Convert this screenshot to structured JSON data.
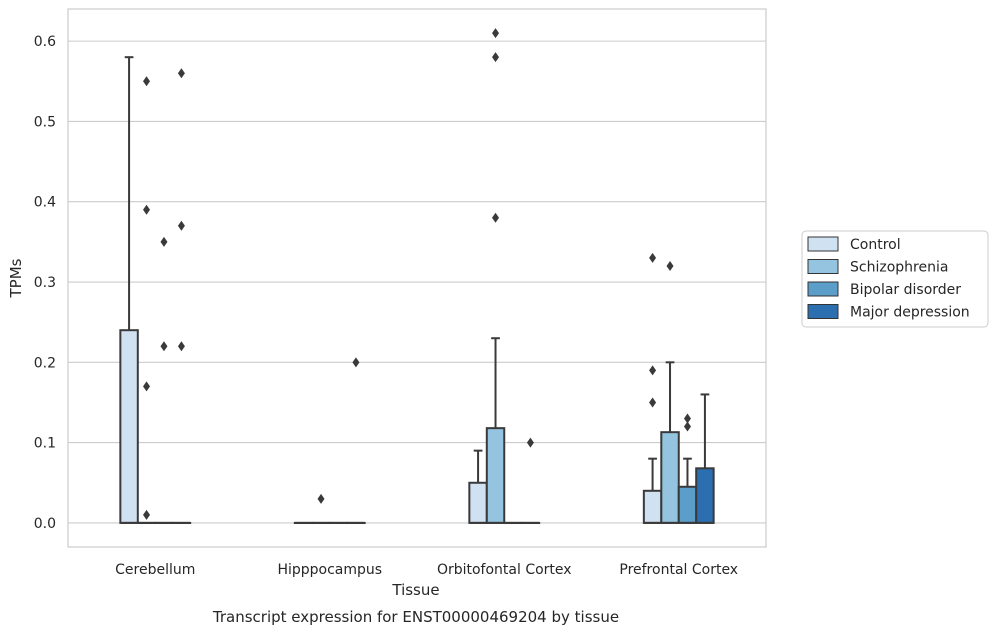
{
  "caption": "Transcript expression for ENST00000469204 by tissue",
  "chart_data": {
    "type": "box",
    "xlabel": "Tissue",
    "ylabel": "TPMs",
    "ylim": [
      -0.03,
      0.64
    ],
    "yticks": [
      "0.0",
      "0.1",
      "0.2",
      "0.3",
      "0.4",
      "0.5",
      "0.6"
    ],
    "grid": "horizontal",
    "legend_position": "right",
    "categories": [
      "Cerebellum",
      "Hipppocampus",
      "Orbitofontal Cortex",
      "Prefrontal Cortex"
    ],
    "series": [
      {
        "name": "Control",
        "color": "#d0e1f2",
        "boxes": [
          {
            "category": "Cerebellum",
            "q1": 0.0,
            "median": 0.0,
            "q3": 0.24,
            "whisker_low": 0.0,
            "whisker_high": 0.58,
            "outliers": []
          },
          {
            "category": "Hipppocampus",
            "q1": 0.0,
            "median": 0.0,
            "q3": 0.0,
            "whisker_low": 0.0,
            "whisker_high": 0.0,
            "outliers": []
          },
          {
            "category": "Orbitofontal Cortex",
            "q1": 0.0,
            "median": 0.0,
            "q3": 0.05,
            "whisker_low": 0.0,
            "whisker_high": 0.09,
            "outliers": []
          },
          {
            "category": "Prefrontal Cortex",
            "q1": 0.0,
            "median": 0.0,
            "q3": 0.04,
            "whisker_low": 0.0,
            "whisker_high": 0.08,
            "outliers": [
              0.15,
              0.19,
              0.33
            ]
          }
        ]
      },
      {
        "name": "Schizophrenia",
        "color": "#94c4df",
        "boxes": [
          {
            "category": "Cerebellum",
            "q1": 0.0,
            "median": 0.0,
            "q3": 0.0,
            "whisker_low": 0.0,
            "whisker_high": 0.0,
            "outliers": [
              0.01,
              0.17,
              0.39,
              0.55
            ]
          },
          {
            "category": "Hipppocampus",
            "q1": 0.0,
            "median": 0.0,
            "q3": 0.0,
            "whisker_low": 0.0,
            "whisker_high": 0.0,
            "outliers": [
              0.03
            ]
          },
          {
            "category": "Orbitofontal Cortex",
            "q1": 0.0,
            "median": 0.0,
            "q3": 0.118,
            "whisker_low": 0.0,
            "whisker_high": 0.23,
            "outliers": [
              0.38,
              0.58,
              0.61
            ]
          },
          {
            "category": "Prefrontal Cortex",
            "q1": 0.0,
            "median": 0.0,
            "q3": 0.113,
            "whisker_low": 0.0,
            "whisker_high": 0.2,
            "outliers": [
              0.32
            ]
          }
        ]
      },
      {
        "name": "Bipolar disorder",
        "color": "#5a9ec9",
        "boxes": [
          {
            "category": "Cerebellum",
            "q1": 0.0,
            "median": 0.0,
            "q3": 0.0,
            "whisker_low": 0.0,
            "whisker_high": 0.0,
            "outliers": [
              0.22,
              0.35
            ]
          },
          {
            "category": "Hipppocampus",
            "q1": 0.0,
            "median": 0.0,
            "q3": 0.0,
            "whisker_low": 0.0,
            "whisker_high": 0.0,
            "outliers": []
          },
          {
            "category": "Orbitofontal Cortex",
            "q1": 0.0,
            "median": 0.0,
            "q3": 0.0,
            "whisker_low": 0.0,
            "whisker_high": 0.0,
            "outliers": []
          },
          {
            "category": "Prefrontal Cortex",
            "q1": 0.0,
            "median": 0.0,
            "q3": 0.045,
            "whisker_low": 0.0,
            "whisker_high": 0.08,
            "outliers": [
              0.12,
              0.13
            ]
          }
        ]
      },
      {
        "name": "Major depression",
        "color": "#2c6fb0",
        "boxes": [
          {
            "category": "Cerebellum",
            "q1": 0.0,
            "median": 0.0,
            "q3": 0.0,
            "whisker_low": 0.0,
            "whisker_high": 0.0,
            "outliers": [
              0.22,
              0.37,
              0.56
            ]
          },
          {
            "category": "Hipppocampus",
            "q1": 0.0,
            "median": 0.0,
            "q3": 0.0,
            "whisker_low": 0.0,
            "whisker_high": 0.0,
            "outliers": [
              0.2
            ]
          },
          {
            "category": "Orbitofontal Cortex",
            "q1": 0.0,
            "median": 0.0,
            "q3": 0.0,
            "whisker_low": 0.0,
            "whisker_high": 0.0,
            "outliers": [
              0.1
            ]
          },
          {
            "category": "Prefrontal Cortex",
            "q1": 0.0,
            "median": 0.0,
            "q3": 0.068,
            "whisker_low": 0.0,
            "whisker_high": 0.16,
            "outliers": []
          }
        ]
      }
    ]
  }
}
